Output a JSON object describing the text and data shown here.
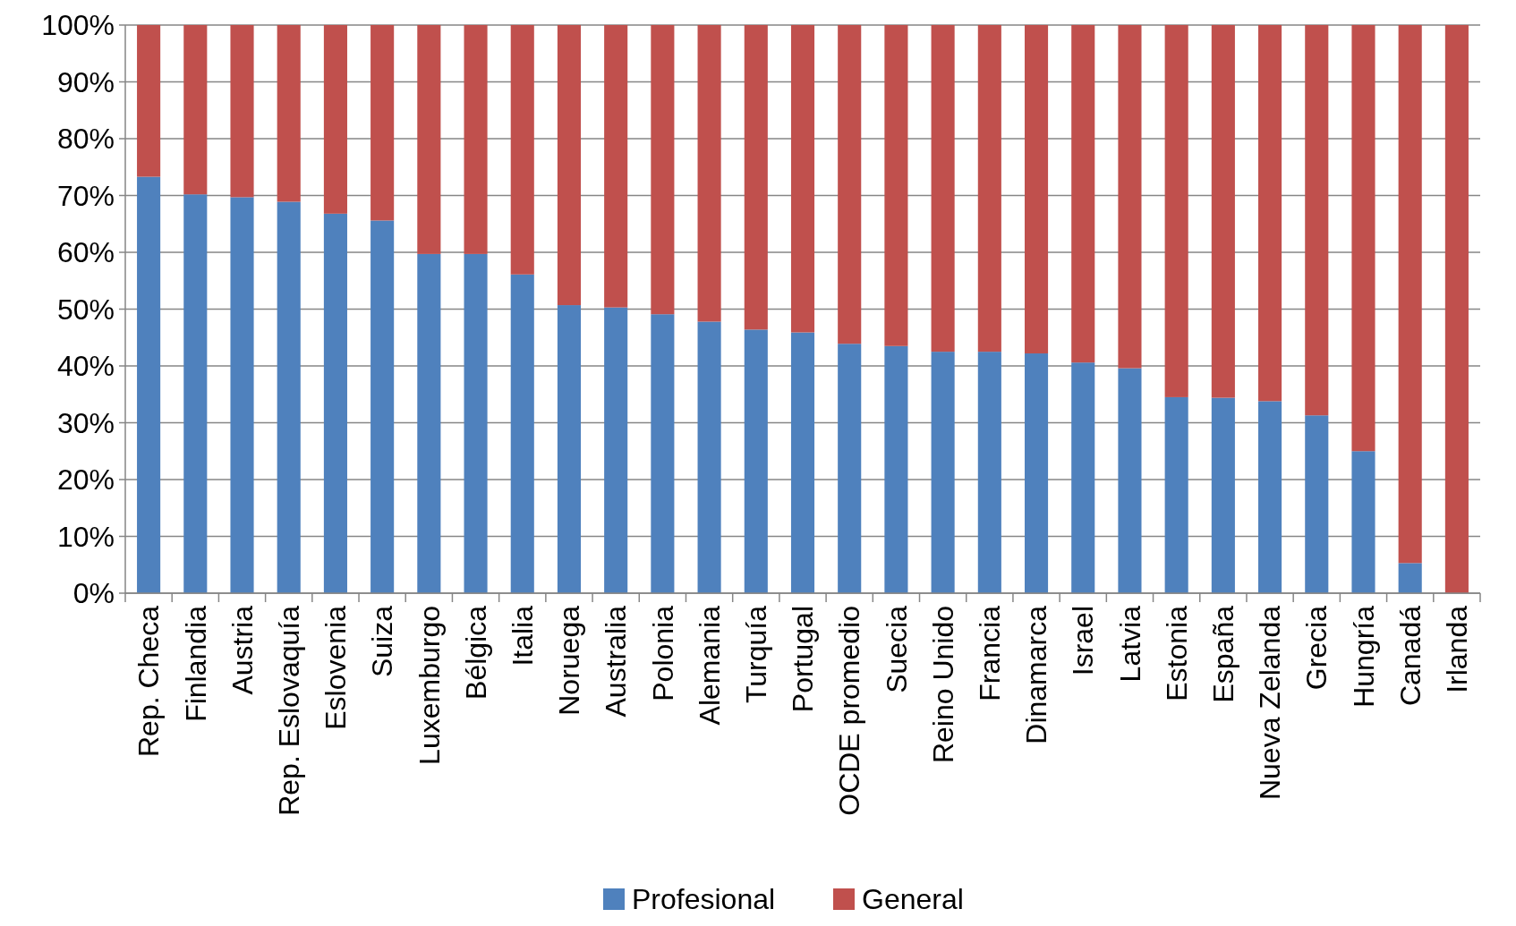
{
  "chart_data": {
    "type": "bar",
    "stacked": true,
    "categories": [
      "Rep. Checa",
      "Finlandia",
      "Austria",
      "Rep. Eslovaquía",
      "Eslovenia",
      "Suiza",
      "Luxemburgo",
      "Bélgica",
      "Italia",
      "Noruega",
      "Australia",
      "Polonia",
      "Alemania",
      "Turquía",
      "Portugal",
      "OCDE promedio",
      "Suecia",
      "Reino Unido",
      "Francia",
      "Dinamarca",
      "Israel",
      "Latvia",
      "Estonia",
      "España",
      "Nueva Zelanda",
      "Grecia",
      "Hungría",
      "Canadá",
      "Irlanda"
    ],
    "series": [
      {
        "name": "Profesional",
        "color": "#4f81bd",
        "values": [
          73.3,
          70.2,
          69.7,
          68.9,
          66.8,
          65.6,
          59.7,
          59.7,
          56.1,
          50.7,
          50.3,
          49.1,
          47.8,
          46.4,
          45.9,
          43.9,
          43.5,
          42.5,
          42.5,
          42.2,
          40.6,
          39.6,
          34.5,
          34.4,
          33.8,
          31.3,
          25.0,
          5.3,
          0
        ]
      },
      {
        "name": "General",
        "color": "#c0504d",
        "values": [
          26.7,
          29.8,
          30.3,
          31.1,
          33.2,
          34.4,
          40.3,
          40.3,
          43.9,
          49.3,
          49.7,
          50.9,
          52.2,
          53.6,
          54.1,
          56.1,
          56.5,
          57.5,
          57.5,
          57.8,
          59.4,
          60.4,
          65.5,
          65.6,
          66.2,
          68.7,
          75.0,
          94.7,
          100
        ]
      }
    ],
    "ylim": [
      0,
      100
    ],
    "yticks": [
      {
        "value": 0,
        "label": "0%"
      },
      {
        "value": 10,
        "label": "10%"
      },
      {
        "value": 20,
        "label": "20%"
      },
      {
        "value": 30,
        "label": "30%"
      },
      {
        "value": 40,
        "label": "40%"
      },
      {
        "value": 50,
        "label": "50%"
      },
      {
        "value": 60,
        "label": "60%"
      },
      {
        "value": 70,
        "label": "70%"
      },
      {
        "value": 80,
        "label": "80%"
      },
      {
        "value": 90,
        "label": "90%"
      },
      {
        "value": 100,
        "label": "100%"
      }
    ],
    "grid": "y",
    "legend": "bottom"
  }
}
